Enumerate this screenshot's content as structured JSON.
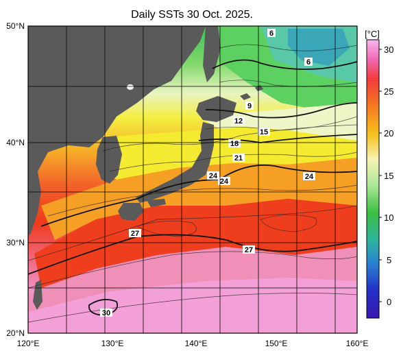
{
  "title": "Daily SSTs 30 Oct. 2025.",
  "axes": {
    "lat_labels": [
      "50°N",
      "40°N",
      "30°N",
      "20°N"
    ],
    "lon_labels": [
      "120°E",
      "130°E",
      "140°E",
      "150°E",
      "160°E"
    ]
  },
  "colorbar": {
    "unit": "[°C]",
    "ticks": [
      "30",
      "25",
      "20",
      "15",
      "10",
      "5",
      "0"
    ]
  },
  "contour_labels": [
    "6",
    "6",
    "9",
    "12",
    "15",
    "18",
    "21",
    "24",
    "24",
    "24",
    "27",
    "27",
    "30"
  ],
  "colors": {
    "land": "#5a5a5a",
    "warm_pink": "#f29ad0",
    "red_orange": "#ef3a1c",
    "orange": "#f5a020",
    "yellow": "#f2e826",
    "pale_yellow": "#f8f6be",
    "green": "#3cc04c",
    "teal": "#38b49c"
  }
}
